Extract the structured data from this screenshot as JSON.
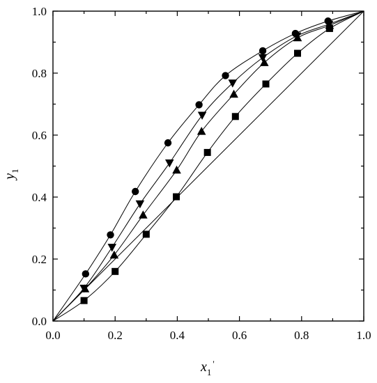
{
  "chart_data": {
    "type": "scatter",
    "title": "",
    "xlabel": {
      "main": "x",
      "sub": "1",
      "prime": "'"
    },
    "ylabel": {
      "main": "y",
      "sub": "1"
    },
    "xlim": [
      0.0,
      1.0
    ],
    "ylim": [
      0.0,
      1.0
    ],
    "x_ticks": [
      "0.0",
      "0.2",
      "0.4",
      "0.6",
      "0.8",
      "1.0"
    ],
    "y_ticks": [
      "0.0",
      "0.2",
      "0.4",
      "0.6",
      "0.8",
      "1.0"
    ],
    "grid": false,
    "legend": "none",
    "diagonal": {
      "x": [
        0.0,
        1.0
      ],
      "y": [
        0.0,
        1.0
      ]
    },
    "series": [
      {
        "marker": "circle",
        "x": [
          0.0,
          0.105,
          0.185,
          0.265,
          0.37,
          0.47,
          0.555,
          0.675,
          0.78,
          0.885,
          1.0
        ],
        "y": [
          0.0,
          0.152,
          0.278,
          0.418,
          0.575,
          0.698,
          0.792,
          0.872,
          0.928,
          0.968,
          1.0
        ]
      },
      {
        "marker": "triangle-down",
        "x": [
          0.0,
          0.1,
          0.19,
          0.28,
          0.375,
          0.48,
          0.578,
          0.675,
          0.785,
          0.888,
          1.0
        ],
        "y": [
          0.0,
          0.106,
          0.238,
          0.378,
          0.51,
          0.664,
          0.768,
          0.85,
          0.92,
          0.958,
          1.0
        ]
      },
      {
        "marker": "triangle-up",
        "x": [
          0.0,
          0.103,
          0.197,
          0.29,
          0.398,
          0.478,
          0.582,
          0.68,
          0.787,
          0.89,
          1.0
        ],
        "y": [
          0.0,
          0.104,
          0.213,
          0.342,
          0.487,
          0.612,
          0.732,
          0.834,
          0.914,
          0.954,
          1.0
        ]
      },
      {
        "marker": "square",
        "x": [
          0.0,
          0.1,
          0.2,
          0.3,
          0.397,
          0.497,
          0.587,
          0.685,
          0.787,
          0.89,
          1.0
        ],
        "y": [
          0.0,
          0.066,
          0.16,
          0.28,
          0.401,
          0.544,
          0.66,
          0.765,
          0.864,
          0.944,
          1.0
        ]
      }
    ]
  }
}
